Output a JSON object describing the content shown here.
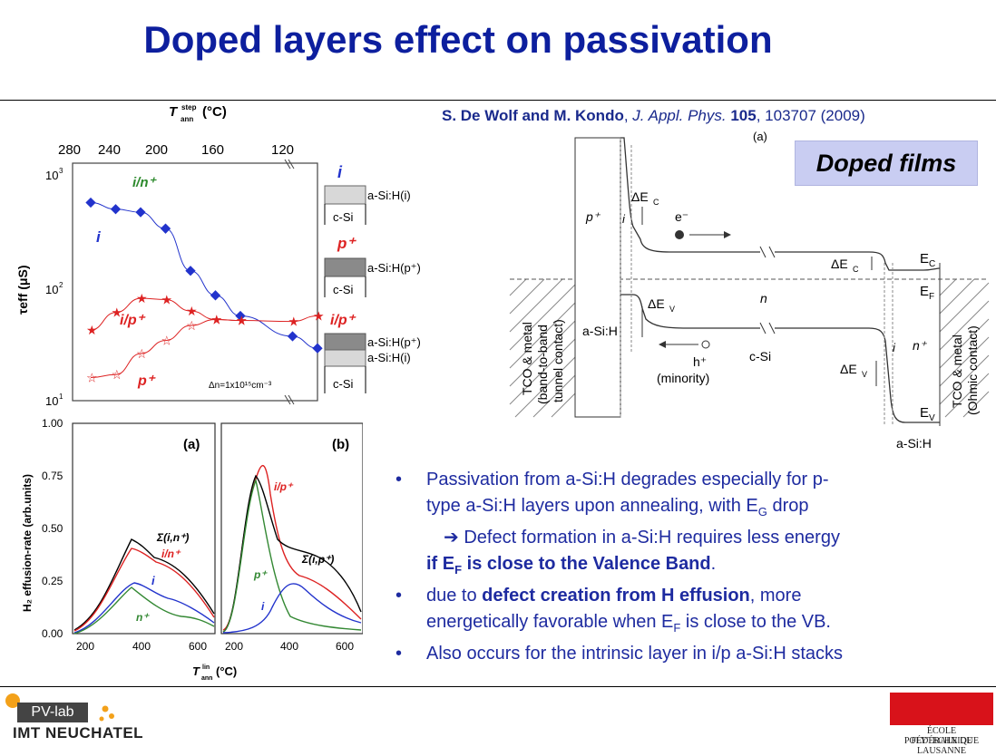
{
  "slide": {
    "title": "Doped layers effect on passivation",
    "citation": {
      "authors": "S. De Wolf and M. Kondo",
      "journal": "J. Appl. Phys.",
      "volume": "105",
      "pages": "103707 (2009)"
    },
    "doped_films_label": "Doped films",
    "bullets": [
      {
        "text": "Passivation from a-Si:H degrades especially for p-"
      },
      {
        "text": "type a-Si:H layers upon annealing, with E"
      },
      {
        "text": "drop"
      }
    ],
    "bullet_lines": {
      "b1_l1": "Passivation from a-Si:H degrades especially for p-",
      "b1_l2a": "type a-Si:H layers upon annealing, with E",
      "b1_l2sub": "G",
      "b1_l2b": " drop",
      "b1_sub_arrow": "➔",
      "b1_sub": " Defect formation in a-Si:H requires less energy",
      "b1_l4a": "if E",
      "b1_l4sub": "F",
      "b1_l4b": " is close to the Valence Band",
      "b1_l4c": ".",
      "b2_l1a": "due to ",
      "b2_l1b": "defect creation from H effusion",
      "b2_l1c": ", more",
      "b2_l2a": "energetically favorable when E",
      "b2_l2sub": "F",
      "b2_l2b": " is close to the VB.",
      "b3": "Also occurs for the intrinsic layer in i/p a-Si:H stacks",
      "bullet_char": "•"
    },
    "footer": {
      "pvlab": "PV-lab",
      "imt": "IMT NEUCHATEL",
      "epfl_line1": "ÉCOLE POLYTECHNIQUE",
      "epfl_line2": "FÉDÉRALE DE LAUSANNE"
    }
  },
  "chart_data": [
    {
      "type": "line",
      "top_axis_label": "T",
      "top_axis_sup": "step",
      "top_axis_sub": "ann",
      "top_axis_unit": "(°C)",
      "top_ticks": [
        "280",
        "240",
        "200",
        "160",
        "120"
      ],
      "ylabel": "τeff (μS)",
      "yscale": "log",
      "ylim": [
        10,
        1000
      ],
      "y_ticks": [
        "10",
        "10",
        "10"
      ],
      "y_tick_exps": [
        "3",
        "2",
        "1"
      ],
      "annotation": "Δn=1x10¹⁵cm⁻³",
      "series": [
        {
          "name": "i",
          "color": "#2233cc",
          "values": [
            560,
            490,
            460,
            330,
            140,
            85,
            56,
            37,
            29
          ]
        },
        {
          "name": "i/p⁺",
          "color": "#dd2222",
          "values": [
            42,
            60,
            80,
            78,
            62,
            52,
            51,
            50,
            56
          ]
        },
        {
          "name": "p⁺",
          "color": "#dd2222",
          "values": [
            16,
            17,
            26,
            34,
            46,
            52,
            51
          ]
        }
      ],
      "series_labels": [
        "i/n⁺",
        "i",
        "i/p⁺",
        "p⁺"
      ],
      "stack_labels": {
        "i_top": "i",
        "i_layer": "a-Si:H(i)",
        "csi1": "c-Si",
        "p_top": "p⁺",
        "p_layer": "a-Si:H(p⁺)",
        "csi2": "c-Si",
        "ip_top": "i/p⁺",
        "ip_layer1": "a-Si:H(p⁺)",
        "ip_layer2": "a-Si:H(i)",
        "csi3": "c-Si"
      }
    },
    {
      "type": "line",
      "panel": "(a)",
      "ylabel": "H₂ effusion-rate (arb.units)",
      "ylim": [
        0,
        1.0
      ],
      "y_ticks": [
        "1.00",
        "0.75",
        "0.50",
        "0.25",
        "0.00"
      ],
      "x_ticks": [
        "200",
        "400",
        "600"
      ],
      "series": [
        {
          "name": "Σ(i,n⁺)",
          "color": "#000000"
        },
        {
          "name": "i/n⁺",
          "color": "#dd2222"
        },
        {
          "name": "i",
          "color": "#2233cc"
        },
        {
          "name": "n⁺",
          "color": "#338833"
        }
      ]
    },
    {
      "type": "line",
      "panel": "(b)",
      "x_ticks": [
        "200",
        "400",
        "600"
      ],
      "xlabel": "T",
      "xlabel_sup": "lin",
      "xlabel_sub": "ann",
      "xlabel_unit": "(°C)",
      "series": [
        {
          "name": "i/p⁺",
          "color": "#dd2222"
        },
        {
          "name": "Σ(i,p⁺)",
          "color": "#000000"
        },
        {
          "name": "p⁺",
          "color": "#338833"
        },
        {
          "name": "i",
          "color": "#2233cc"
        }
      ]
    }
  ],
  "band_diagram": {
    "panel": "(a)",
    "labels": {
      "pplus": "p⁺",
      "i": "i",
      "dEc": "ΔE",
      "dEc_sub": "C",
      "e": "e⁻",
      "dEc2": "ΔE",
      "dEc2_sub": "C",
      "Ec": "E",
      "Ec_sub": "C",
      "Ef": "E",
      "Ef_sub": "F",
      "dEv": "ΔE",
      "dEv_sub": "V",
      "n": "n",
      "asih_left": "a-Si:H",
      "h": "h⁺",
      "minority": "(minority)",
      "csi": "c-Si",
      "i2": "i",
      "nplus": "n⁺",
      "dEv2": "ΔE",
      "dEv2_sub": "V",
      "Ev": "E",
      "Ev_sub": "V",
      "asih_right": "a-Si:H",
      "tco_left_1": "TCO & metal",
      "tco_left_2": "(band-to-band",
      "tco_left_3": "tunnel contact)",
      "tco_right_1": "TCO & metal",
      "tco_right_2": "(Ohmic contact)"
    }
  }
}
